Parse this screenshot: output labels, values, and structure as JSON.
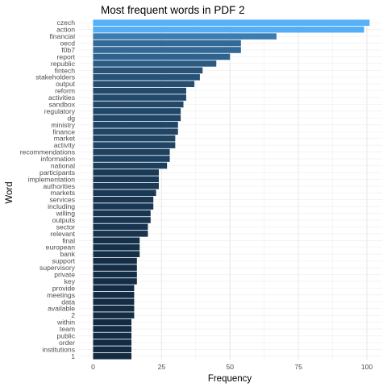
{
  "chart_data": {
    "type": "bar",
    "orientation": "horizontal",
    "title": "Most frequent words in PDF 2",
    "xlabel": "Frequency",
    "ylabel": "Word",
    "xlim": [
      0,
      106
    ],
    "x_ticks": [
      0,
      25,
      50,
      75,
      100
    ],
    "grid": true,
    "legend": "none",
    "color_low": "#132B43",
    "color_high": "#56B1F7",
    "categories": [
      "czech",
      "action",
      "financial",
      "oecd",
      "f0b7",
      "report",
      "republic",
      "fintech",
      "stakeholders",
      "output",
      "reform",
      "activities",
      "sandbox",
      "regulatory",
      "dg",
      "ministry",
      "finance",
      "market",
      "activity",
      "recommendations",
      "information",
      "national",
      "participants",
      "implementation",
      "authorities",
      "markets",
      "services",
      "including",
      "willing",
      "outputs",
      "sector",
      "relevant",
      "final",
      "european",
      "bank",
      "support",
      "supervisory",
      "private",
      "key",
      "provide",
      "meetings",
      "data",
      "available",
      "2",
      "within",
      "team",
      "public",
      "order",
      "institutions",
      "1"
    ],
    "values": [
      101,
      99,
      67,
      54,
      54,
      50,
      45,
      40,
      39,
      37,
      34,
      34,
      33,
      32,
      32,
      31,
      31,
      30,
      30,
      28,
      28,
      27,
      24,
      24,
      24,
      23,
      22,
      22,
      21,
      21,
      20,
      20,
      17,
      17,
      17,
      16,
      16,
      16,
      16,
      15,
      15,
      15,
      15,
      15,
      14,
      14,
      14,
      14,
      14,
      14
    ]
  }
}
